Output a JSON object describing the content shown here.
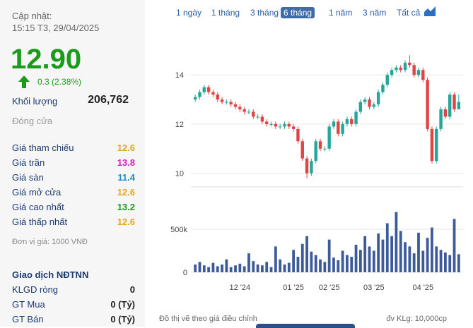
{
  "header": {
    "updated_label": "Cập nhật:",
    "updated_time": "15:15 T3, 29/04/2025"
  },
  "price": "12.90",
  "change": "0.3 (2.38%)",
  "volume": {
    "label": "Khối lượng",
    "value": "206,762"
  },
  "status": "Đóng cửa",
  "stats": [
    {
      "label": "Giá tham chiếu",
      "value": "12.6"
    },
    {
      "label": "Giá trần",
      "value": "13.8"
    },
    {
      "label": "Giá sàn",
      "value": "11.4"
    },
    {
      "label": "Giá mở cửa",
      "value": "12.6"
    },
    {
      "label": "Giá cao nhất",
      "value": "13.2"
    },
    {
      "label": "Giá thấp nhất",
      "value": "12.6"
    }
  ],
  "unit_note": "Đơn vị giá: 1000 VNĐ",
  "foreign": {
    "title": "Giao dịch NĐTNN",
    "rows": [
      {
        "label": "KLGD ròng",
        "value": "0"
      },
      {
        "label": "GT Mua",
        "value": "0 (Tỷ)"
      },
      {
        "label": "GT Bán",
        "value": "0 (Tỷ)"
      }
    ]
  },
  "tabs": [
    "1 ngày",
    "1 tháng",
    "3 tháng",
    "6 tháng",
    "1 năm",
    "3 năm",
    "Tất cả"
  ],
  "active_tab": 3,
  "footer": {
    "left": "Đồ thị vẽ theo giá điều chỉnh",
    "right": "đv KLg: 10,000cp"
  },
  "chart_data": {
    "type": "candlestick",
    "categories": [
      null,
      null,
      null,
      null,
      null,
      null,
      null,
      null,
      null,
      null,
      "12 '24",
      null,
      null,
      null,
      null,
      null,
      null,
      null,
      null,
      null,
      null,
      null,
      "01 '25",
      null,
      null,
      null,
      null,
      null,
      null,
      null,
      "02 '25",
      null,
      null,
      null,
      null,
      null,
      null,
      null,
      null,
      null,
      "03 '25",
      null,
      null,
      null,
      null,
      null,
      null,
      null,
      null,
      null,
      null,
      "04 '25",
      null,
      null,
      null,
      null,
      null,
      null,
      null,
      null
    ],
    "open": [
      13.0,
      13.1,
      13.3,
      13.5,
      13.3,
      13.2,
      13.0,
      12.9,
      12.9,
      12.8,
      12.7,
      12.6,
      12.5,
      12.5,
      12.3,
      12.3,
      12.1,
      12.0,
      12.0,
      11.9,
      11.9,
      12.0,
      11.9,
      11.8,
      11.3,
      10.6,
      10.0,
      10.5,
      11.3,
      11.0,
      11.0,
      11.9,
      12.1,
      11.6,
      12.0,
      12.2,
      12.0,
      12.5,
      12.9,
      13.0,
      12.7,
      12.8,
      13.3,
      13.6,
      14.0,
      14.2,
      14.3,
      14.2,
      14.5,
      14.4,
      14.0,
      14.2,
      13.8,
      11.8,
      10.5,
      11.8,
      12.6,
      12.3,
      13.2,
      12.6
    ],
    "high": [
      13.2,
      13.4,
      13.6,
      13.6,
      13.4,
      13.3,
      13.1,
      13.0,
      13.0,
      12.9,
      12.8,
      12.7,
      12.6,
      12.6,
      12.4,
      12.4,
      12.2,
      12.1,
      12.1,
      12.0,
      12.1,
      12.1,
      12.0,
      11.9,
      11.4,
      10.7,
      10.6,
      11.4,
      11.4,
      11.1,
      12.0,
      12.2,
      12.2,
      12.1,
      12.3,
      12.3,
      12.6,
      13.0,
      13.1,
      13.1,
      12.9,
      13.4,
      13.7,
      14.1,
      14.3,
      14.4,
      14.4,
      14.6,
      14.8,
      14.5,
      14.3,
      14.3,
      13.9,
      11.9,
      11.9,
      12.7,
      12.7,
      13.3,
      13.3,
      13.2
    ],
    "low": [
      12.9,
      13.0,
      13.2,
      13.2,
      13.1,
      12.9,
      12.8,
      12.8,
      12.7,
      12.6,
      12.5,
      12.4,
      12.4,
      12.2,
      12.2,
      12.0,
      11.9,
      11.9,
      11.8,
      11.8,
      11.8,
      11.8,
      11.7,
      11.2,
      10.5,
      9.8,
      9.9,
      10.4,
      10.9,
      10.9,
      10.9,
      11.8,
      11.5,
      11.5,
      11.9,
      11.9,
      11.9,
      12.4,
      12.8,
      12.6,
      12.6,
      12.7,
      13.2,
      13.5,
      13.9,
      14.1,
      14.1,
      14.1,
      14.3,
      13.9,
      13.9,
      13.7,
      11.7,
      10.4,
      10.4,
      11.7,
      12.2,
      12.2,
      12.5,
      12.6
    ],
    "close": [
      13.1,
      13.3,
      13.5,
      13.3,
      13.2,
      13.0,
      12.9,
      12.9,
      12.8,
      12.7,
      12.6,
      12.5,
      12.5,
      12.3,
      12.3,
      12.1,
      12.0,
      12.0,
      11.9,
      11.9,
      12.0,
      11.9,
      11.8,
      11.3,
      10.6,
      10.0,
      10.5,
      11.3,
      11.0,
      11.0,
      11.9,
      12.1,
      11.6,
      12.0,
      12.2,
      12.0,
      12.5,
      12.9,
      13.0,
      12.7,
      12.8,
      13.3,
      13.6,
      14.0,
      14.2,
      14.3,
      14.2,
      14.5,
      14.4,
      14.0,
      14.2,
      13.8,
      11.8,
      10.5,
      11.8,
      12.6,
      12.3,
      13.2,
      12.6,
      12.9
    ],
    "volume": [
      90000,
      120000,
      80000,
      60000,
      110000,
      70000,
      90000,
      150000,
      60000,
      80000,
      100000,
      70000,
      220000,
      130000,
      90000,
      80000,
      120000,
      60000,
      300000,
      150000,
      90000,
      110000,
      260000,
      180000,
      330000,
      420000,
      240000,
      200000,
      150000,
      120000,
      380000,
      170000,
      140000,
      250000,
      200000,
      180000,
      320000,
      260000,
      420000,
      300000,
      250000,
      450000,
      380000,
      570000,
      420000,
      700000,
      480000,
      350000,
      300000,
      220000,
      460000,
      250000,
      400000,
      520000,
      300000,
      260000,
      230000,
      200000,
      620000,
      210000
    ],
    "up_color": "#26a69a",
    "down_color": "#e04545",
    "volume_color": "#3d5a99",
    "ylim": [
      9.5,
      15.9
    ],
    "yticks": [
      10,
      12,
      14
    ],
    "y2lim": [
      0,
      967000
    ],
    "y2ticks": [
      0,
      {
        "value": 500000,
        "label": "500k"
      }
    ],
    "grid": true
  }
}
